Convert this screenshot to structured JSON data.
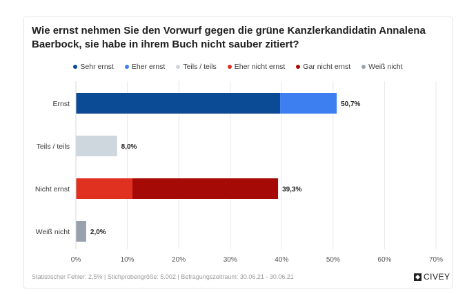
{
  "chart_data": {
    "type": "bar",
    "orientation": "horizontal",
    "stacked": true,
    "title": "Wie ernst nehmen Sie den Vorwurf gegen die grüne Kanzlerkandidatin Annalena Baerbock, sie habe in ihrem Buch nicht sauber zitiert?",
    "categories": [
      "Ernst",
      "Teils / teils",
      "Nicht ernst",
      "Weiß nicht"
    ],
    "series": [
      {
        "name": "Sehr ernst",
        "color": "#0b4a94",
        "values": [
          39.7,
          0,
          0,
          0
        ]
      },
      {
        "name": "Eher ernst",
        "color": "#3d7ff0",
        "values": [
          11.0,
          0,
          0,
          0
        ]
      },
      {
        "name": "Teils / teils",
        "color": "#ced6de",
        "values": [
          0,
          8.0,
          0,
          0
        ]
      },
      {
        "name": "Eher nicht ernst",
        "color": "#e03020",
        "values": [
          0,
          0,
          11.0,
          0
        ]
      },
      {
        "name": "Gar nicht ernst",
        "color": "#a50a06",
        "values": [
          0,
          0,
          28.3,
          0
        ]
      },
      {
        "name": "Weiß nicht",
        "color": "#98a2ac",
        "values": [
          0,
          0,
          0,
          2.0
        ]
      }
    ],
    "totals_labels": [
      "50,7%",
      "8,0%",
      "39,3%",
      "2,0%"
    ],
    "totals": [
      50.7,
      8.0,
      39.3,
      2.0
    ],
    "xlim": [
      0,
      70
    ],
    "xticks": [
      0,
      10,
      20,
      30,
      40,
      50,
      60,
      70
    ],
    "xtick_labels": [
      "0%",
      "10%",
      "20%",
      "30%",
      "40%",
      "50%",
      "60%",
      "70%"
    ],
    "grid": true,
    "legend_position": "top"
  },
  "footer": {
    "text": "Statistischer Fehler: 2,5% | Stichprobengröße: 5.002 | Befragungszeitraum: 30.06.21 - 30.06.21",
    "brand": "CIVEY"
  }
}
